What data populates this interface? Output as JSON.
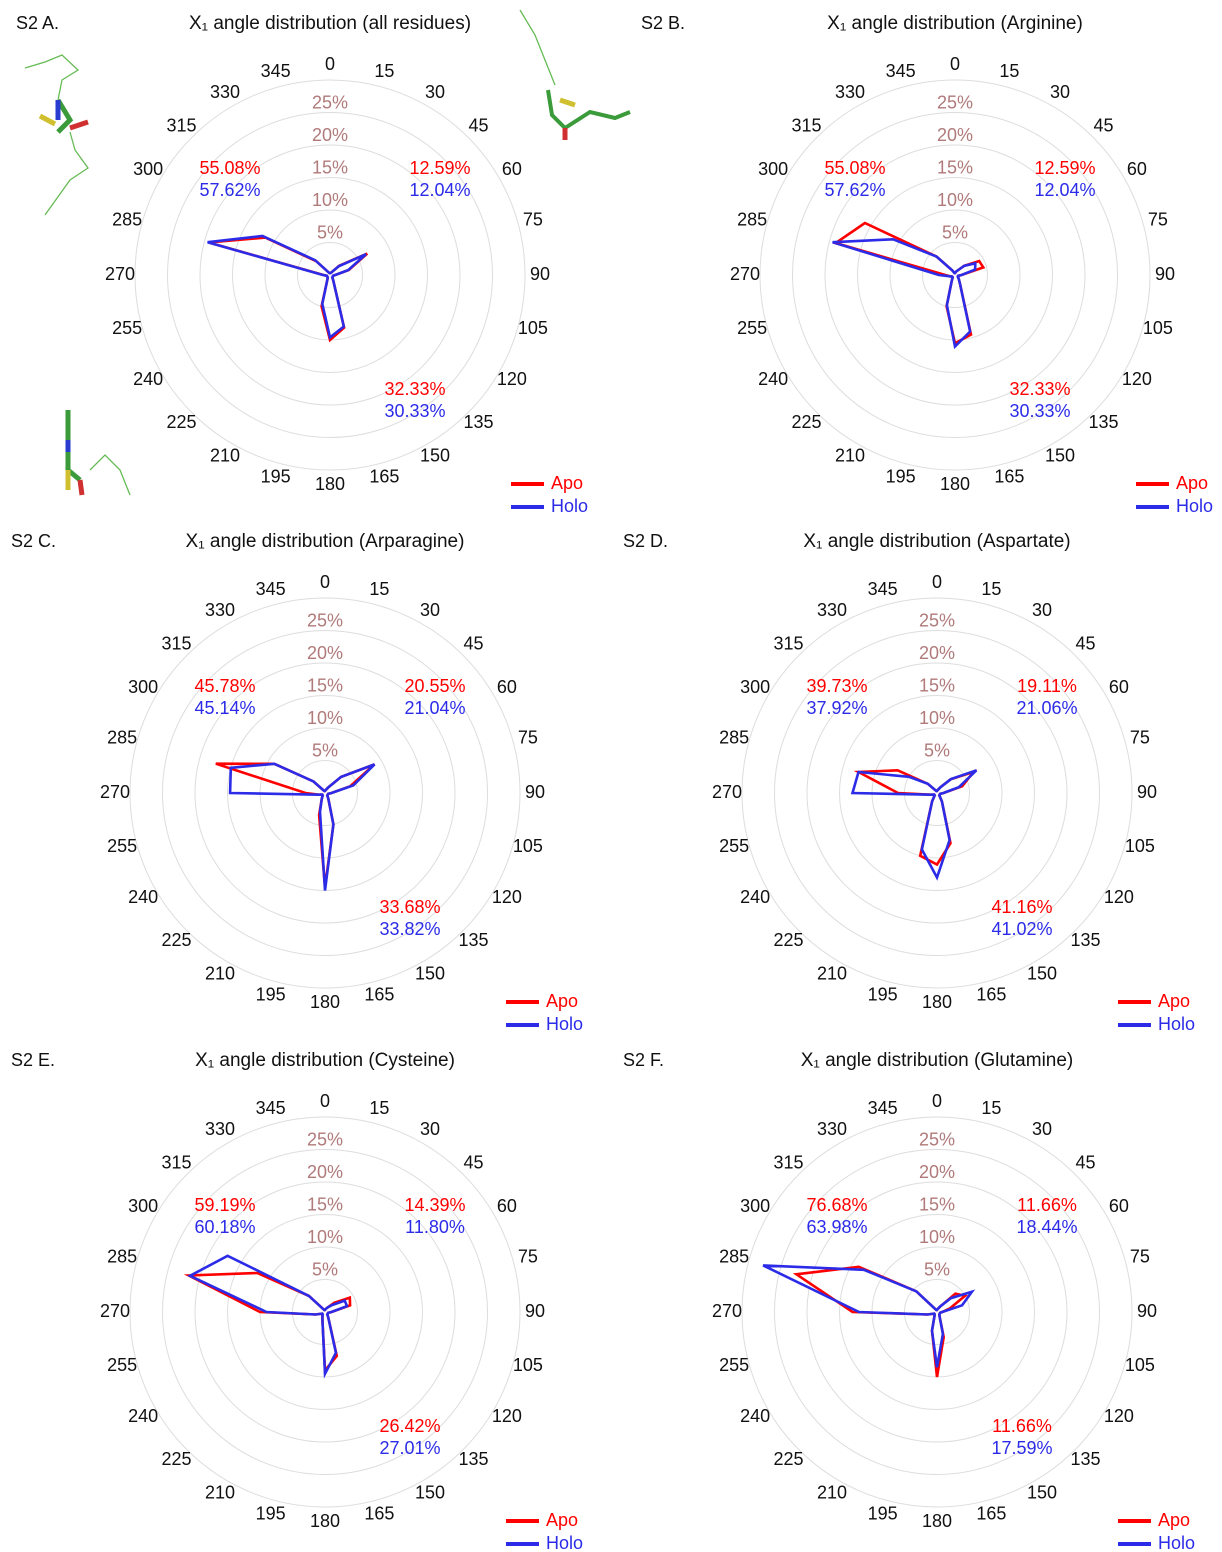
{
  "chart_data": [
    {
      "type": "radar",
      "panel": "S2 A.",
      "title": "X₁ angle distribution (all residues)",
      "categories": [
        0,
        15,
        30,
        45,
        60,
        75,
        90,
        105,
        120,
        135,
        150,
        165,
        180,
        195,
        210,
        225,
        240,
        255,
        270,
        285,
        300,
        315,
        330,
        345
      ],
      "rlim": [
        0,
        30
      ],
      "rticks": [
        {
          "value": 5,
          "label": "5%"
        },
        {
          "value": 10,
          "label": "10%"
        },
        {
          "value": 15,
          "label": "15%"
        },
        {
          "value": 20,
          "label": "20%"
        },
        {
          "value": 25,
          "label": "25%"
        }
      ],
      "series": [
        {
          "name": "Apo",
          "color": "#ff0000",
          "values": [
            0.3,
            0.3,
            0.5,
            2,
            6.6,
            3,
            0.8,
            0.5,
            0.5,
            0.5,
            1,
            8.4,
            10,
            5,
            0.8,
            0.5,
            0.5,
            0.5,
            1,
            19.3,
            11.5,
            3,
            0.5,
            0.3
          ],
          "sector_values": [
            55.08,
            12.59,
            32.33
          ],
          "sector_labels": [
            "55.08%",
            "12.59%",
            "32.33%"
          ]
        },
        {
          "name": "Holo",
          "color": "#2b2be8",
          "values": [
            0.3,
            0.3,
            0.5,
            1.9,
            6.4,
            2.9,
            0.8,
            0.5,
            0.5,
            0.5,
            1,
            8.2,
            9.6,
            4.6,
            0.8,
            0.5,
            0.5,
            0.5,
            1.1,
            19.5,
            12,
            3.2,
            0.5,
            0.3
          ],
          "sector_values": [
            57.62,
            12.04,
            30.33
          ],
          "sector_labels": [
            "57.62%",
            "12.04%",
            "30.33%"
          ]
        }
      ]
    },
    {
      "type": "radar",
      "panel": "S2 B.",
      "title": "X₁ angle distribution (Arginine)",
      "categories": [
        0,
        15,
        30,
        45,
        60,
        75,
        90,
        105,
        120,
        135,
        150,
        165,
        180,
        195,
        210,
        225,
        240,
        255,
        270,
        285,
        300,
        315,
        330,
        345
      ],
      "rlim": [
        0,
        30
      ],
      "rticks": [
        {
          "value": 5,
          "label": "5%"
        },
        {
          "value": 10,
          "label": "10%"
        },
        {
          "value": 15,
          "label": "15%"
        },
        {
          "value": 20,
          "label": "20%"
        },
        {
          "value": 25,
          "label": "25%"
        }
      ],
      "series": [
        {
          "name": "Apo",
          "color": "#ff0000",
          "values": [
            0.3,
            0.5,
            0.8,
            2,
            4.3,
            4.5,
            1,
            0.5,
            0.5,
            0.8,
            1.5,
            9.5,
            10.5,
            5,
            1,
            0.5,
            0.5,
            0.8,
            1.5,
            19,
            16,
            4,
            0.8,
            0.3
          ],
          "sector_values": [
            55.08,
            12.59,
            32.33
          ],
          "sector_labels": [
            "55.08%",
            "12.59%",
            "32.33%"
          ]
        },
        {
          "name": "Holo",
          "color": "#2b2be8",
          "values": [
            0.3,
            0.5,
            0.8,
            2,
            3.6,
            3.2,
            1,
            0.5,
            0.5,
            0.8,
            1.5,
            9,
            11,
            4.8,
            1,
            0.5,
            0.5,
            0.8,
            2.5,
            19.5,
            11,
            4,
            0.8,
            0.3
          ],
          "sector_values": [
            57.62,
            12.04,
            30.33
          ],
          "sector_labels": [
            "57.62%",
            "12.04%",
            "30.33%"
          ]
        }
      ]
    },
    {
      "type": "radar",
      "panel": "S2 C.",
      "title": "X₁ angle distribution (Arparagine)",
      "categories": [
        0,
        15,
        30,
        45,
        60,
        75,
        90,
        105,
        120,
        135,
        150,
        165,
        180,
        195,
        210,
        225,
        240,
        255,
        270,
        285,
        300,
        315,
        330,
        345
      ],
      "rlim": [
        0,
        30
      ],
      "rticks": [
        {
          "value": 5,
          "label": "5%"
        },
        {
          "value": 10,
          "label": "10%"
        },
        {
          "value": 15,
          "label": "15%"
        },
        {
          "value": 20,
          "label": "20%"
        },
        {
          "value": 25,
          "label": "25%"
        }
      ],
      "series": [
        {
          "name": "Apo",
          "color": "#ff0000",
          "values": [
            0.3,
            0.5,
            1,
            3.5,
            8.8,
            4,
            1,
            0.5,
            0.5,
            0.5,
            1,
            5,
            14.5,
            3.5,
            1,
            0.5,
            0.5,
            1,
            3,
            17.4,
            9,
            2.5,
            0.5,
            0.3
          ],
          "sector_values": [
            45.78,
            20.55,
            33.68
          ],
          "sector_labels": [
            "45.78%",
            "20.55%",
            "33.68%"
          ]
        },
        {
          "name": "Holo",
          "color": "#2b2be8",
          "values": [
            0.3,
            0.5,
            1,
            3.5,
            8.8,
            4.5,
            1,
            0.5,
            0.5,
            0.5,
            1,
            5,
            15,
            3,
            1,
            0.5,
            0.5,
            1,
            14.6,
            15,
            9,
            2.5,
            0.5,
            0.3
          ],
          "sector_values": [
            45.14,
            21.04,
            33.82
          ],
          "sector_labels": [
            "45.14%",
            "21.04%",
            "33.82%"
          ]
        }
      ]
    },
    {
      "type": "radar",
      "panel": "S2 D.",
      "title": "X₁ angle distribution (Aspartate)",
      "categories": [
        0,
        15,
        30,
        45,
        60,
        75,
        90,
        105,
        120,
        135,
        150,
        165,
        180,
        195,
        210,
        225,
        240,
        255,
        270,
        285,
        300,
        315,
        330,
        345
      ],
      "rlim": [
        0,
        30
      ],
      "rticks": [
        {
          "value": 5,
          "label": "5%"
        },
        {
          "value": 10,
          "label": "10%"
        },
        {
          "value": 15,
          "label": "15%"
        },
        {
          "value": 20,
          "label": "20%"
        },
        {
          "value": 25,
          "label": "25%"
        }
      ],
      "series": [
        {
          "name": "Apo",
          "color": "#ff0000",
          "values": [
            0.3,
            0.5,
            1,
            3,
            6.5,
            4,
            1,
            0.5,
            0.5,
            0.5,
            1.5,
            8,
            11,
            10,
            1.5,
            0.5,
            0.5,
            1,
            6,
            12.5,
            7,
            2,
            0.5,
            0.3
          ],
          "sector_values": [
            39.73,
            19.11,
            41.16
          ],
          "sector_labels": [
            "39.73%",
            "19.11%",
            "41.16%"
          ]
        },
        {
          "name": "Holo",
          "color": "#2b2be8",
          "values": [
            0.3,
            0.5,
            1,
            3,
            7,
            3.5,
            1,
            0.5,
            0.5,
            0.5,
            1.5,
            7.5,
            13,
            9,
            1.5,
            0.5,
            0.5,
            1,
            13,
            12.5,
            5,
            2,
            0.5,
            0.3
          ],
          "sector_values": [
            37.92,
            21.06,
            41.02
          ],
          "sector_labels": [
            "37.92%",
            "21.06%",
            "41.02%"
          ]
        }
      ]
    },
    {
      "type": "radar",
      "panel": "S2 E.",
      "title": "X₁ angle distribution (Cysteine)",
      "categories": [
        0,
        15,
        30,
        45,
        60,
        75,
        90,
        105,
        120,
        135,
        150,
        165,
        180,
        195,
        210,
        225,
        240,
        255,
        270,
        285,
        300,
        315,
        330,
        345
      ],
      "rlim": [
        0,
        30
      ],
      "rticks": [
        {
          "value": 5,
          "label": "5%"
        },
        {
          "value": 10,
          "label": "10%"
        },
        {
          "value": 15,
          "label": "15%"
        },
        {
          "value": 20,
          "label": "20%"
        },
        {
          "value": 25,
          "label": "25%"
        }
      ],
      "series": [
        {
          "name": "Apo",
          "color": "#ff0000",
          "values": [
            0.3,
            0.5,
            0.8,
            2,
            4.4,
            4,
            1,
            0.5,
            0.5,
            0.5,
            1,
            7,
            9,
            1.5,
            0.8,
            0.5,
            0.5,
            1.5,
            10,
            21.7,
            12,
            3.5,
            0.5,
            0.3
          ],
          "sector_values": [
            59.19,
            14.39,
            26.42
          ],
          "sector_labels": [
            "59.19%",
            "14.39%",
            "26.42%"
          ]
        },
        {
          "name": "Holo",
          "color": "#2b2be8",
          "values": [
            0.3,
            0.5,
            0.8,
            1.5,
            3.5,
            3.5,
            1,
            0.5,
            0.5,
            0.5,
            1,
            6.5,
            9.5,
            1.5,
            0.8,
            0.5,
            0.5,
            1.5,
            9,
            21.5,
            17.3,
            3.5,
            0.5,
            0.3
          ],
          "sector_values": [
            60.18,
            11.8,
            27.01
          ],
          "sector_labels": [
            "60.18%",
            "11.80%",
            "27.01%"
          ]
        }
      ]
    },
    {
      "type": "radar",
      "panel": "S2 F.",
      "title": "X₁ angle distribution (Glutamine)",
      "categories": [
        0,
        15,
        30,
        45,
        60,
        75,
        90,
        105,
        120,
        135,
        150,
        165,
        180,
        195,
        210,
        225,
        240,
        255,
        270,
        285,
        300,
        315,
        330,
        345
      ],
      "rlim": [
        0,
        30
      ],
      "rticks": [
        {
          "value": 5,
          "label": "5%"
        },
        {
          "value": 10,
          "label": "10%"
        },
        {
          "value": 15,
          "label": "15%"
        },
        {
          "value": 20,
          "label": "20%"
        },
        {
          "value": 25,
          "label": "25%"
        }
      ],
      "series": [
        {
          "name": "Apo",
          "color": "#ff0000",
          "values": [
            0.3,
            0.5,
            1,
            4,
            5,
            2,
            0.8,
            0.5,
            0.5,
            0.5,
            0.8,
            4,
            10,
            3,
            0.8,
            0.5,
            0.5,
            1.5,
            13,
            22.4,
            13.9,
            4.5,
            0.5,
            0.3
          ],
          "sector_values": [
            76.68,
            11.66,
            11.66
          ],
          "sector_labels": [
            "76.68%",
            "11.66%",
            "11.66%"
          ]
        },
        {
          "name": "Holo",
          "color": "#2b2be8",
          "values": [
            0.3,
            0.5,
            1,
            3,
            6.2,
            4,
            0.8,
            0.5,
            0.5,
            0.5,
            0.8,
            3.5,
            8.5,
            3,
            0.8,
            0.5,
            0.5,
            1.5,
            12,
            27.7,
            13,
            4.5,
            0.5,
            0.3
          ],
          "sector_values": [
            63.98,
            18.44,
            17.59
          ],
          "sector_labels": [
            "63.98%",
            "18.44%",
            "17.59%"
          ]
        }
      ]
    }
  ]
}
